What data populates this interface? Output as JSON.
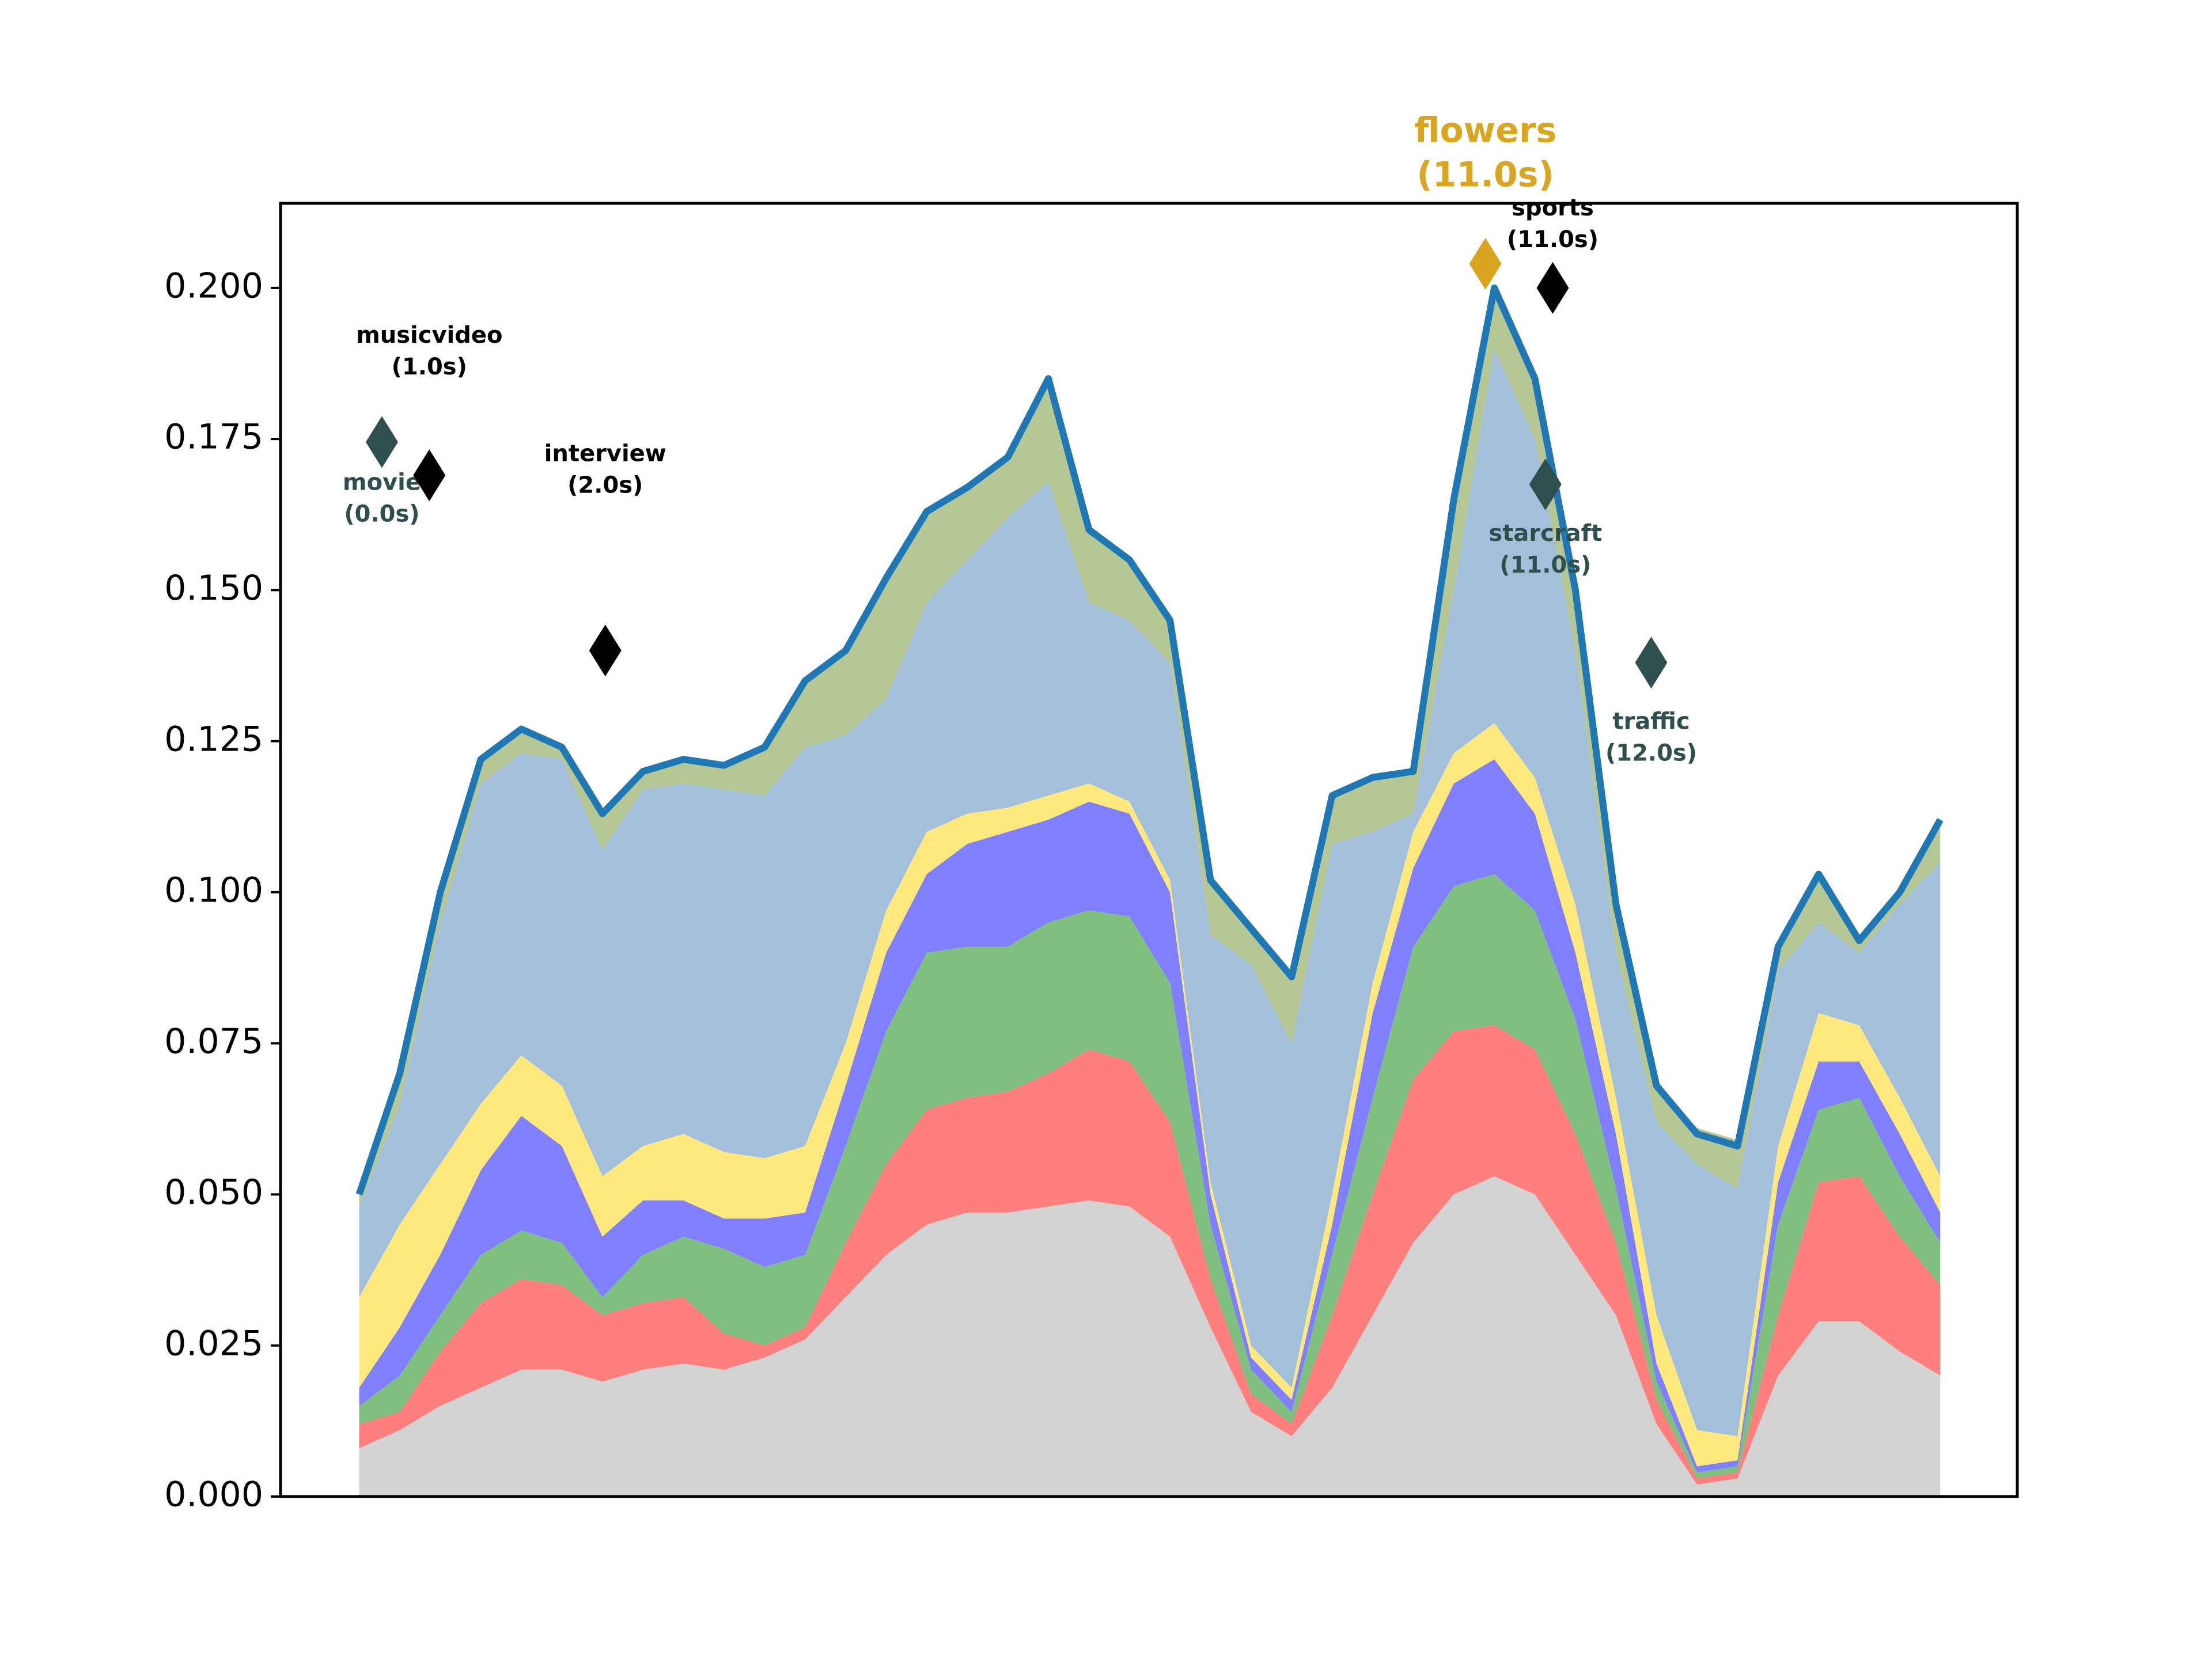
{
  "chart_data": {
    "type": "stacked_area",
    "x": [
      0,
      1,
      2,
      3,
      4,
      5,
      6,
      7,
      8,
      9,
      10,
      11,
      12,
      13,
      14,
      15,
      16,
      17,
      18,
      19,
      20,
      21,
      22,
      23,
      24,
      25,
      26,
      27,
      28,
      29,
      30,
      31,
      32,
      33,
      34,
      35,
      36,
      37,
      38,
      39
    ],
    "xlim": [
      -1.94,
      40.9
    ],
    "ylim": [
      0,
      0.214
    ],
    "yticks": [
      {
        "value": 0,
        "label": "0.000"
      },
      {
        "value": 0.025,
        "label": "0.025"
      },
      {
        "value": 0.05,
        "label": "0.050"
      },
      {
        "value": 0.075,
        "label": "0.075"
      },
      {
        "value": 0.1,
        "label": "0.100"
      },
      {
        "value": 0.125,
        "label": "0.125"
      },
      {
        "value": 0.15,
        "label": "0.150"
      },
      {
        "value": 0.175,
        "label": "0.175"
      },
      {
        "value": 0.2,
        "label": "0.200"
      }
    ],
    "series": [
      {
        "color": "#d3d3d3",
        "values": [
          0.008,
          0.011,
          0.015,
          0.018,
          0.021,
          0.021,
          0.019,
          0.021,
          0.022,
          0.021,
          0.023,
          0.026,
          0.033,
          0.04,
          0.045,
          0.047,
          0.047,
          0.048,
          0.049,
          0.048,
          0.043,
          0.028,
          0.014,
          0.01,
          0.018,
          0.03,
          0.042,
          0.05,
          0.053,
          0.05,
          0.04,
          0.03,
          0.012,
          0.002,
          0.003,
          0.02,
          0.029,
          0.029,
          0.024,
          0.02
        ]
      },
      {
        "color": "#ff7f7f",
        "values": [
          0.004,
          0.003,
          0.009,
          0.014,
          0.015,
          0.014,
          0.011,
          0.011,
          0.011,
          0.006,
          0.002,
          0.002,
          0.009,
          0.015,
          0.019,
          0.019,
          0.02,
          0.022,
          0.025,
          0.024,
          0.019,
          0.008,
          0.003,
          0.002,
          0.012,
          0.02,
          0.027,
          0.027,
          0.025,
          0.024,
          0.02,
          0.012,
          0.004,
          0.001,
          0.001,
          0.01,
          0.023,
          0.024,
          0.019,
          0.015
        ]
      },
      {
        "color": "#7fbf7f",
        "values": [
          0.003,
          0.006,
          0.006,
          0.008,
          0.008,
          0.007,
          0.003,
          0.008,
          0.01,
          0.014,
          0.013,
          0.012,
          0.016,
          0.022,
          0.026,
          0.025,
          0.024,
          0.025,
          0.023,
          0.024,
          0.023,
          0.009,
          0.004,
          0.002,
          0.01,
          0.016,
          0.022,
          0.024,
          0.025,
          0.023,
          0.019,
          0.009,
          0.003,
          0.001,
          0.001,
          0.015,
          0.012,
          0.013,
          0.01,
          0.007
        ]
      },
      {
        "color": "#8080ff",
        "values": [
          0.003,
          0.008,
          0.01,
          0.014,
          0.019,
          0.016,
          0.01,
          0.009,
          0.006,
          0.005,
          0.008,
          0.007,
          0.01,
          0.013,
          0.013,
          0.017,
          0.019,
          0.017,
          0.018,
          0.017,
          0.015,
          0.005,
          0.002,
          0.002,
          0.005,
          0.014,
          0.013,
          0.017,
          0.019,
          0.016,
          0.011,
          0.009,
          0.003,
          0.001,
          0.001,
          0.007,
          0.008,
          0.006,
          0.007,
          0.005
        ]
      },
      {
        "color": "#ffe97f",
        "values": [
          0.015,
          0.017,
          0.015,
          0.011,
          0.01,
          0.01,
          0.01,
          0.009,
          0.011,
          0.011,
          0.01,
          0.011,
          0.007,
          0.007,
          0.007,
          0.005,
          0.004,
          0.004,
          0.003,
          0.002,
          0.002,
          0.002,
          0.002,
          0.002,
          0.005,
          0.005,
          0.006,
          0.005,
          0.006,
          0.006,
          0.008,
          0.006,
          0.008,
          0.006,
          0.004,
          0.006,
          0.008,
          0.006,
          0.006,
          0.006
        ]
      },
      {
        "color": "#a3bfd9",
        "values": [
          0.015,
          0.02,
          0.04,
          0.053,
          0.05,
          0.054,
          0.054,
          0.059,
          0.058,
          0.06,
          0.06,
          0.066,
          0.051,
          0.035,
          0.038,
          0.042,
          0.048,
          0.052,
          0.03,
          0.03,
          0.036,
          0.041,
          0.063,
          0.057,
          0.058,
          0.025,
          0.003,
          0.027,
          0.062,
          0.056,
          0.042,
          0.024,
          0.032,
          0.044,
          0.041,
          0.029,
          0.015,
          0.012,
          0.032,
          0.052
        ]
      },
      {
        "color": "#b5c795",
        "values": [
          0.002,
          0.005,
          0.005,
          0.004,
          0.004,
          0.002,
          0.006,
          0.003,
          0.004,
          0.004,
          0.008,
          0.011,
          0.014,
          0.02,
          0.015,
          0.012,
          0.01,
          0.017,
          0.012,
          0.01,
          0.007,
          0.009,
          0.006,
          0.011,
          0.008,
          0.009,
          0.007,
          0.015,
          0.01,
          0.01,
          0.01,
          0.008,
          0.006,
          0.006,
          0.008,
          0.004,
          0.008,
          0.002,
          0.002,
          0.007
        ]
      }
    ],
    "line": {
      "color": "#1f77b4",
      "values": [
        0.05,
        0.07,
        0.1,
        0.122,
        0.127,
        0.124,
        0.113,
        0.12,
        0.122,
        0.121,
        0.124,
        0.135,
        0.14,
        0.152,
        0.163,
        0.167,
        0.172,
        0.185,
        0.16,
        0.155,
        0.145,
        0.102,
        0.094,
        0.086,
        0.116,
        0.119,
        0.12,
        0.165,
        0.2,
        0.185,
        0.15,
        0.098,
        0.068,
        0.06,
        0.058,
        0.091,
        0.103,
        0.092,
        0.1,
        0.112
      ]
    },
    "annotations": [
      {
        "label": [
          "movie",
          "(0.0s)"
        ],
        "x": 0.56,
        "y": 0.1745,
        "color": "#2f4f4f"
      },
      {
        "label": [
          "musicvideo",
          "(1.0s)"
        ],
        "x": 1.73,
        "y": 0.169,
        "color": "#000000"
      },
      {
        "label": [
          "interview",
          "(2.0s)"
        ],
        "x": 6.07,
        "y": 0.14,
        "color": "#000000"
      },
      {
        "label": [
          "flowers",
          "(11.0s)"
        ],
        "x": 27.78,
        "y": 0.204,
        "color": "#daa520"
      },
      {
        "label": [
          "sports",
          "(11.0s)"
        ],
        "x": 29.44,
        "y": 0.2,
        "color": "#000000"
      },
      {
        "label": [
          "starcraft",
          "(11.0s)"
        ],
        "x": 29.26,
        "y": 0.1675,
        "color": "#2f4f4f"
      },
      {
        "label": [
          "traffic",
          "(12.0s)"
        ],
        "x": 31.87,
        "y": 0.138,
        "color": "#2f4f4f"
      }
    ]
  }
}
